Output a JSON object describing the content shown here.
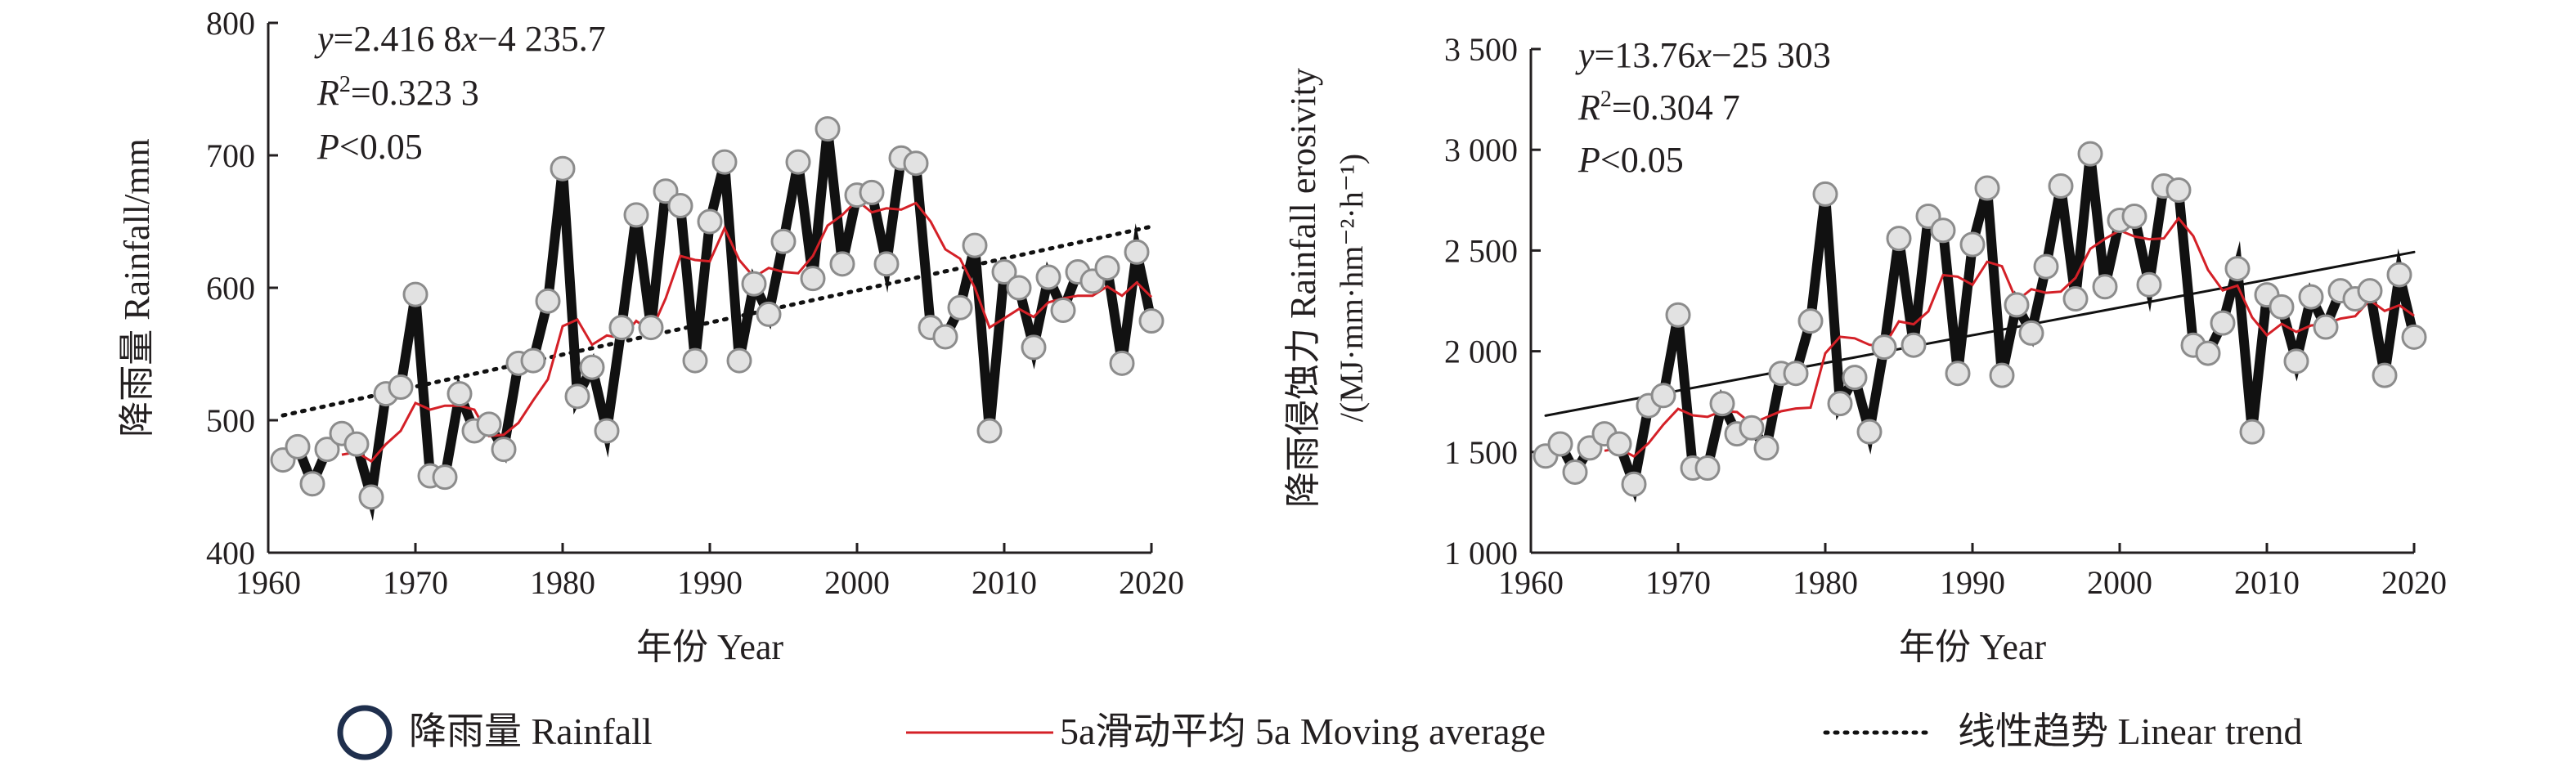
{
  "chart_data": [
    {
      "type": "line",
      "panel": "left",
      "xlabel": "年份 Year",
      "ylabel": "降雨量 Rainfall/mm",
      "xlim": [
        1960,
        2020
      ],
      "ylim": [
        400,
        800
      ],
      "xticks": [
        1960,
        1970,
        1980,
        1990,
        2000,
        2010,
        2020
      ],
      "yticks": [
        400,
        500,
        600,
        700,
        800
      ],
      "annotations": [
        {
          "var": "y",
          "rest": "=2.416 8",
          "var2": "x",
          "rest2": "−4 235.7"
        },
        {
          "var": "R",
          "sup": "2",
          "rest": "=0.323 3"
        },
        {
          "var": "P",
          "rest": "<0.05"
        }
      ],
      "x": [
        1961,
        1962,
        1963,
        1964,
        1965,
        1966,
        1967,
        1968,
        1969,
        1970,
        1971,
        1972,
        1973,
        1974,
        1975,
        1976,
        1977,
        1978,
        1979,
        1980,
        1981,
        1982,
        1983,
        1984,
        1985,
        1986,
        1987,
        1988,
        1989,
        1990,
        1991,
        1992,
        1993,
        1994,
        1995,
        1996,
        1997,
        1998,
        1999,
        2000,
        2001,
        2002,
        2003,
        2004,
        2005,
        2006,
        2007,
        2008,
        2009,
        2010,
        2011,
        2012,
        2013,
        2014,
        2015,
        2016,
        2017,
        2018,
        2019,
        2020
      ],
      "series": [
        {
          "name": "Rainfall",
          "style": "thick-line-circles",
          "values": [
            470,
            480,
            452,
            478,
            490,
            482,
            442,
            520,
            525,
            595,
            458,
            457,
            520,
            492,
            497,
            478,
            543,
            545,
            590,
            690,
            518,
            540,
            492,
            570,
            655,
            570,
            673,
            662,
            545,
            650,
            695,
            545,
            603,
            580,
            635,
            695,
            607,
            720,
            618,
            670,
            672,
            618,
            698,
            694,
            570,
            563,
            585,
            632,
            492,
            612,
            600,
            555,
            608,
            583,
            612,
            605,
            615,
            543,
            627,
            575
          ]
        },
        {
          "name": "5a Moving average",
          "style": "red-line",
          "values": [
            null,
            null,
            null,
            null,
            474,
            476,
            469,
            482,
            492,
            513,
            508,
            511,
            511,
            508,
            488,
            489,
            498,
            515,
            531,
            571,
            576,
            557,
            564,
            562,
            575,
            567,
            592,
            624,
            621,
            620,
            645,
            621,
            608,
            615,
            612,
            611,
            624,
            647,
            655,
            666,
            657,
            660,
            659,
            664,
            650,
            629,
            622,
            600,
            570,
            577,
            584,
            578,
            589,
            592,
            594,
            594,
            601,
            594,
            604,
            593
          ]
        },
        {
          "name": "Linear trend",
          "style": "dotted",
          "slope": 2.4168,
          "intercept": -4235.7,
          "x_range": [
            1961,
            2020
          ]
        }
      ]
    },
    {
      "type": "line",
      "panel": "right",
      "xlabel": "年份 Year",
      "ylabel": "降雨侵蚀力 Rainfall erosivity",
      "ylabel2": "/(MJ·mm·hm⁻²·h⁻¹)",
      "xlim": [
        1960,
        2020
      ],
      "ylim": [
        1000,
        3500
      ],
      "xticks": [
        1960,
        1970,
        1980,
        1990,
        2000,
        2010,
        2020
      ],
      "yticks": [
        1000,
        1500,
        2000,
        2500,
        3000,
        3500
      ],
      "ytick_labels": [
        "1 000",
        "1 500",
        "2 000",
        "2 500",
        "3 000",
        "3 500"
      ],
      "annotations": [
        {
          "var": "y",
          "rest": "=13.76",
          "var2": "x",
          "rest2": "−25 303"
        },
        {
          "var": "R",
          "sup": "2",
          "rest": "=0.304 7"
        },
        {
          "var": "P",
          "rest": "<0.05"
        }
      ],
      "x": [
        1961,
        1962,
        1963,
        1964,
        1965,
        1966,
        1967,
        1968,
        1969,
        1970,
        1971,
        1972,
        1973,
        1974,
        1975,
        1976,
        1977,
        1978,
        1979,
        1980,
        1981,
        1982,
        1983,
        1984,
        1985,
        1986,
        1987,
        1988,
        1989,
        1990,
        1991,
        1992,
        1993,
        1994,
        1995,
        1996,
        1997,
        1998,
        1999,
        2000,
        2001,
        2002,
        2003,
        2004,
        2005,
        2006,
        2007,
        2008,
        2009,
        2010,
        2011,
        2012,
        2013,
        2014,
        2015,
        2016,
        2017,
        2018,
        2019,
        2020
      ],
      "series": [
        {
          "name": "Rainfall erosivity",
          "style": "thick-line-circles",
          "values": [
            1480,
            1540,
            1400,
            1520,
            1590,
            1540,
            1340,
            1730,
            1780,
            2180,
            1420,
            1420,
            1740,
            1590,
            1620,
            1520,
            1890,
            1890,
            2150,
            2780,
            1740,
            1870,
            1600,
            2020,
            2560,
            2030,
            2670,
            2600,
            1890,
            2530,
            2810,
            1880,
            2230,
            2090,
            2420,
            2820,
            2260,
            2980,
            2320,
            2650,
            2670,
            2330,
            2820,
            2800,
            2030,
            1990,
            2140,
            2410,
            1600,
            2280,
            2220,
            1950,
            2270,
            2120,
            2300,
            2260,
            2300,
            1880,
            2380,
            2070
          ]
        },
        {
          "name": "5a Moving average",
          "style": "red-line",
          "values": [
            null,
            null,
            null,
            null,
            1506,
            1518,
            1478,
            1544,
            1636,
            1714,
            1682,
            1674,
            1704,
            1698,
            1640,
            1672,
            1702,
            1716,
            1720,
            1990,
            2072,
            2064,
            2032,
            2026,
            2148,
            2134,
            2198,
            2378,
            2370,
            2330,
            2444,
            2422,
            2250,
            2308,
            2290,
            2296,
            2364,
            2508,
            2558,
            2600,
            2570,
            2556,
            2560,
            2660,
            2572,
            2404,
            2302,
            2326,
            2168,
            2080,
            2136,
            2096,
            2128,
            2136,
            2162,
            2174,
            2254,
            2200,
            2228,
            2176
          ]
        },
        {
          "name": "Linear trend",
          "style": "solid-thin",
          "slope": 13.76,
          "intercept": -25303,
          "x_range": [
            1961,
            2020
          ]
        }
      ]
    }
  ],
  "legend": {
    "items": [
      {
        "id": "rainfall",
        "label": "降雨量 Rainfall"
      },
      {
        "id": "moving",
        "label": "5a滑动平均 5a Moving average"
      },
      {
        "id": "trend",
        "label": "线性趋势 Linear trend"
      }
    ]
  },
  "colors": {
    "series_line": "#111111",
    "marker_fill": "#e2e2e2",
    "marker_stroke": "#8c8c8c",
    "moving_avg": "#d42027",
    "axis": "#231f20",
    "legend_circle": "#1f2f4d"
  }
}
